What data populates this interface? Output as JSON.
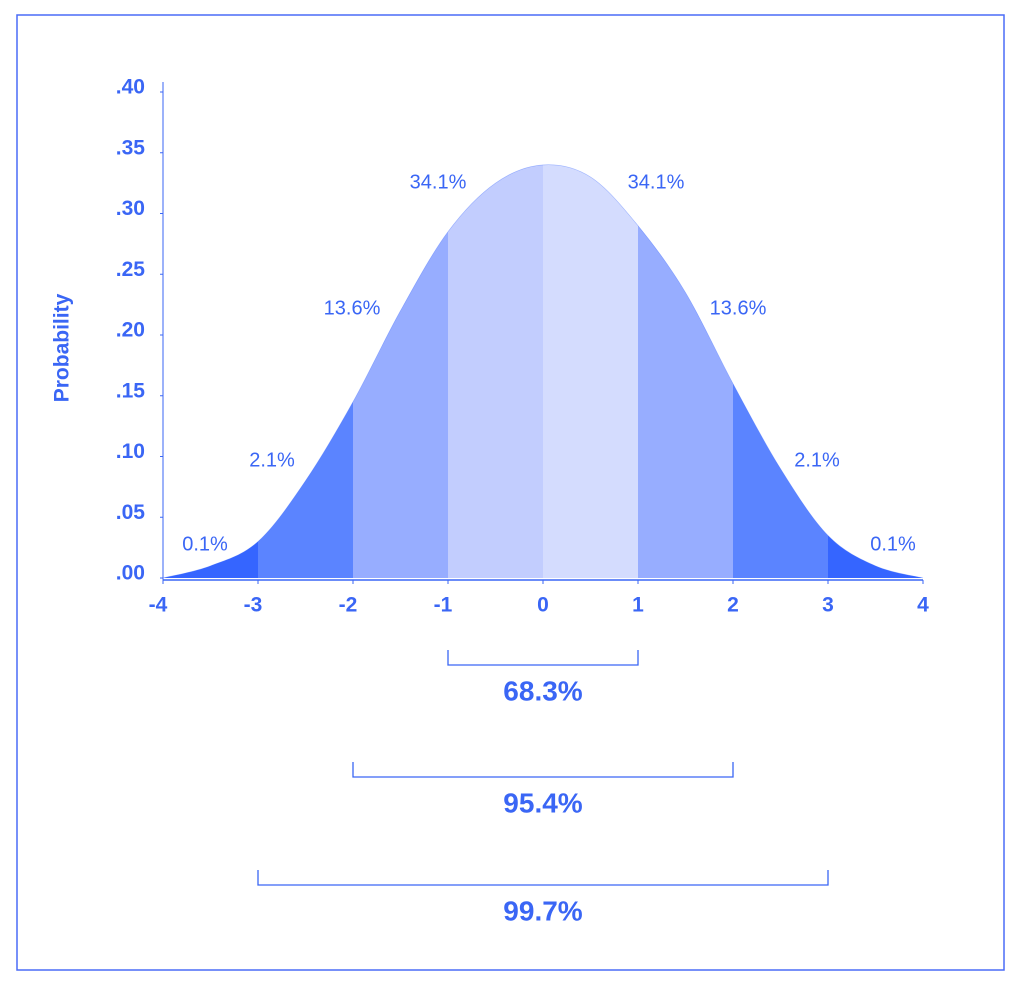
{
  "chart_data": {
    "type": "density",
    "ylabel": "Probability",
    "x": [
      -4,
      -3.5,
      -3,
      -2.5,
      -2,
      -1.5,
      -1,
      -0.5,
      0,
      0.5,
      1,
      1.5,
      2,
      2.5,
      3,
      3.5,
      4
    ],
    "values": [
      0.0,
      0.01,
      0.03,
      0.08,
      0.145,
      0.22,
      0.285,
      0.325,
      0.34,
      0.33,
      0.29,
      0.235,
      0.16,
      0.09,
      0.035,
      0.01,
      0.0
    ],
    "xlim": [
      -4,
      4
    ],
    "ylim": [
      0,
      0.4
    ],
    "xticks": [
      -4,
      -3,
      -2,
      -1,
      0,
      1,
      2,
      3,
      4
    ],
    "yticks": [
      {
        "value": 0,
        "label": ".00"
      },
      {
        "value": 0.05,
        "label": ".05"
      },
      {
        "value": 0.1,
        "label": ".10"
      },
      {
        "value": 0.15,
        "label": ".15"
      },
      {
        "value": 0.2,
        "label": ".20"
      },
      {
        "value": 0.25,
        "label": ".25"
      },
      {
        "value": 0.3,
        "label": ".30"
      },
      {
        "value": 0.35,
        "label": ".35"
      },
      {
        "value": 0.4,
        "label": ".40"
      }
    ],
    "regions": {
      "bounds": [
        -4,
        -3,
        -2,
        -1,
        0,
        1,
        2,
        3,
        4
      ],
      "values": [
        0.1,
        2.1,
        13.6,
        34.1,
        34.1,
        13.6,
        2.1,
        0.1
      ],
      "value_labels": [
        "0.1%",
        "2.1%",
        "13.6%",
        "34.1%",
        "34.1%",
        "13.6%",
        "2.1%",
        "0.1%"
      ],
      "colors": [
        "#3565ff",
        "#5b84ff",
        "#97adff",
        "#c2cdfe",
        "#d4dcfe",
        "#97adff",
        "#5b84ff",
        "#3565ff"
      ]
    },
    "intervals": {
      "from": [
        -1,
        -2,
        -3
      ],
      "to": [
        1,
        2,
        3
      ],
      "values": [
        68.3,
        95.4,
        99.7
      ],
      "value_labels": [
        "68.3%",
        "95.4%",
        "99.7%"
      ]
    }
  }
}
